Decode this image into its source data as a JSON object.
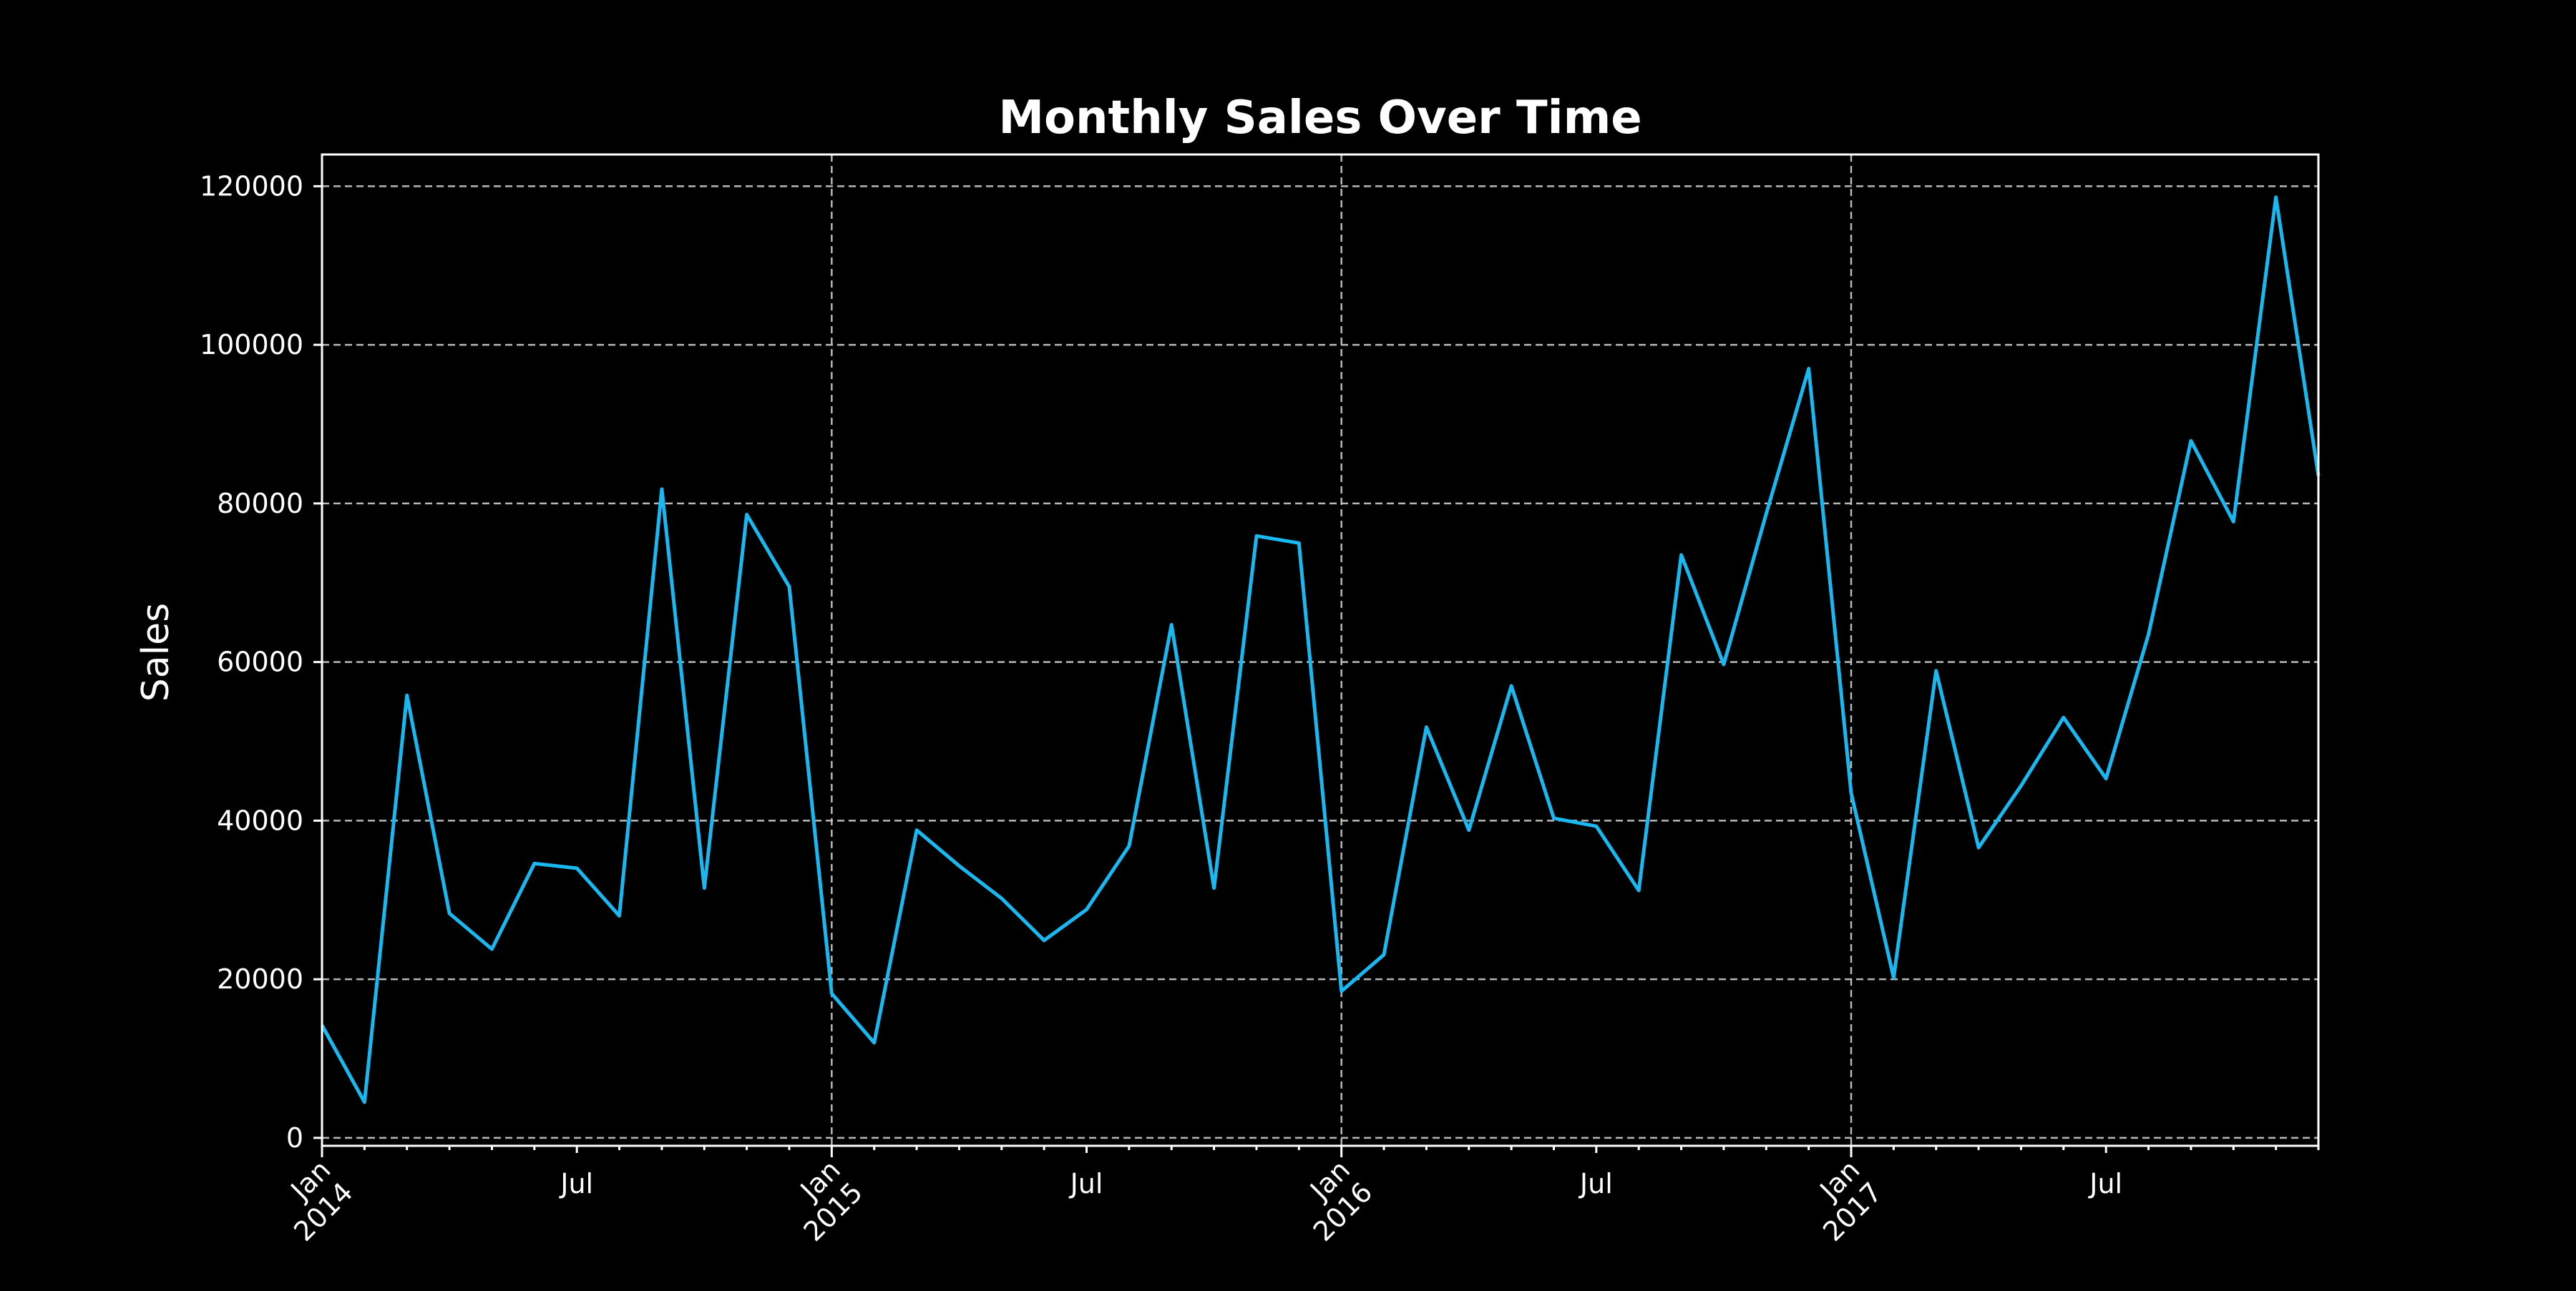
{
  "chart_data": {
    "type": "line",
    "title": "Monthly Sales Over Time",
    "xlabel": "",
    "ylabel": "Sales",
    "ylim": [
      -1000,
      124000
    ],
    "xlim": [
      "2014-01",
      "2017-12"
    ],
    "grid": true,
    "legend": "none",
    "yticks": [
      0,
      20000,
      40000,
      60000,
      80000,
      100000,
      120000
    ],
    "xticks": [
      {
        "date": "2014-01",
        "label": [
          "Jan",
          "2014"
        ],
        "major": true
      },
      {
        "date": "2014-07",
        "label": [
          "Jul"
        ],
        "major": false
      },
      {
        "date": "2015-01",
        "label": [
          "Jan",
          "2015"
        ],
        "major": true
      },
      {
        "date": "2015-07",
        "label": [
          "Jul"
        ],
        "major": false
      },
      {
        "date": "2016-01",
        "label": [
          "Jan",
          "2016"
        ],
        "major": true
      },
      {
        "date": "2016-07",
        "label": [
          "Jul"
        ],
        "major": false
      },
      {
        "date": "2017-01",
        "label": [
          "Jan",
          "2017"
        ],
        "major": true
      },
      {
        "date": "2017-07",
        "label": [
          "Jul"
        ],
        "major": false
      }
    ],
    "colors": {
      "background": "#000000",
      "line": "#1ab8f0",
      "text": "#ffffff"
    },
    "x": [
      "2014-01",
      "2014-02",
      "2014-03",
      "2014-04",
      "2014-05",
      "2014-06",
      "2014-07",
      "2014-08",
      "2014-09",
      "2014-10",
      "2014-11",
      "2014-12",
      "2015-01",
      "2015-02",
      "2015-03",
      "2015-04",
      "2015-05",
      "2015-06",
      "2015-07",
      "2015-08",
      "2015-09",
      "2015-10",
      "2015-11",
      "2015-12",
      "2016-01",
      "2016-02",
      "2016-03",
      "2016-04",
      "2016-05",
      "2016-06",
      "2016-07",
      "2016-08",
      "2016-09",
      "2016-10",
      "2016-11",
      "2016-12",
      "2017-01",
      "2017-02",
      "2017-03",
      "2017-04",
      "2017-05",
      "2017-06",
      "2017-07",
      "2017-08",
      "2017-09",
      "2017-10",
      "2017-11",
      "2017-12"
    ],
    "series": [
      {
        "values": [
          14200,
          4500,
          55800,
          28300,
          23800,
          34600,
          34000,
          28000,
          81800,
          31500,
          78600,
          69500,
          18200,
          12000,
          38800,
          34300,
          30200,
          24900,
          28800,
          36800,
          64700,
          31500,
          75900,
          75000,
          18500,
          23100,
          51800,
          38800,
          57000,
          40300,
          39300,
          31200,
          73500,
          59700,
          78700,
          97000,
          43500,
          20200,
          58900,
          36600,
          44400,
          53000,
          45300,
          63500,
          87900,
          77700,
          118600,
          83500
        ]
      }
    ]
  }
}
